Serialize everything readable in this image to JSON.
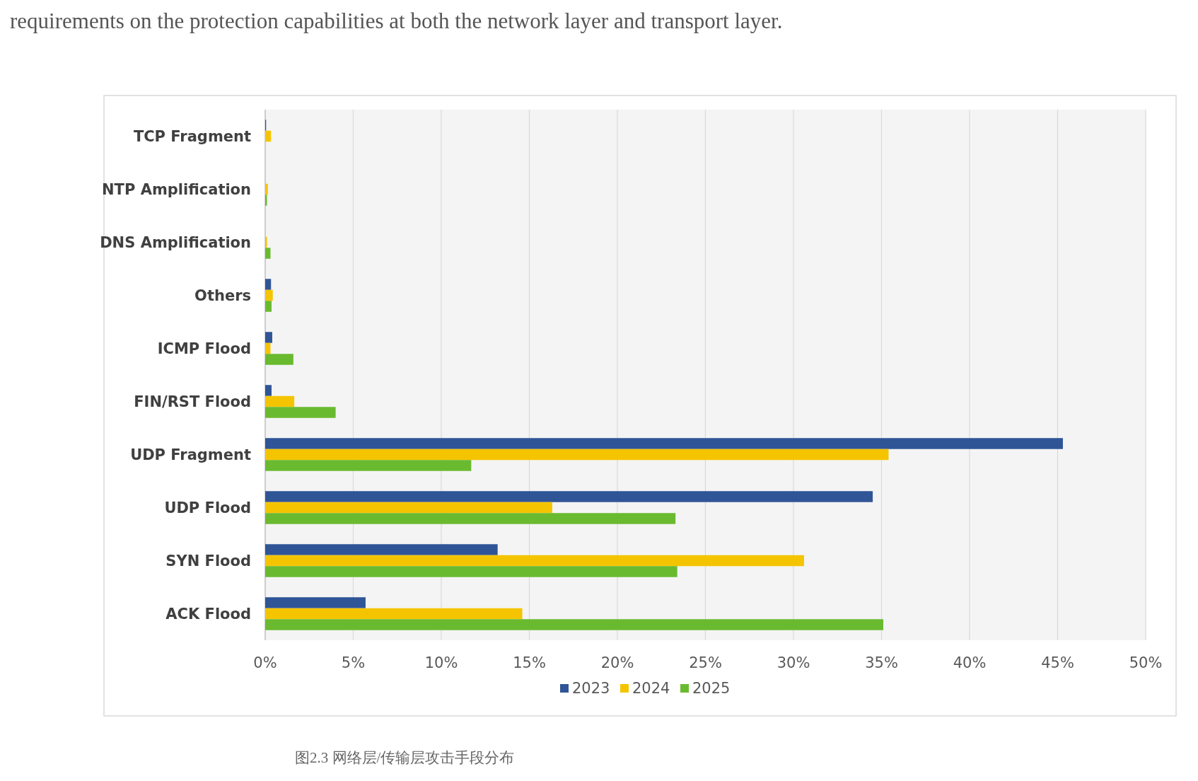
{
  "chart_data": {
    "type": "bar",
    "orientation": "horizontal",
    "categories": [
      "TCP Fragment",
      "NTP Amplification",
      "DNS Amplification",
      "Others",
      "ICMP Flood",
      "FIN/RST Flood",
      "UDP Fragment",
      "UDP Flood",
      "SYN Flood",
      "ACK Flood"
    ],
    "series": [
      {
        "name": "2023",
        "color": "#2f5597",
        "values": [
          0.05,
          0,
          0,
          0.33,
          0.4,
          0.36,
          45.3,
          34.5,
          13.2,
          5.7
        ]
      },
      {
        "name": "2024",
        "color": "#f5c400",
        "values": [
          0.33,
          0.15,
          0.1,
          0.43,
          0.3,
          1.65,
          35.4,
          16.3,
          30.6,
          14.6
        ]
      },
      {
        "name": "2025",
        "color": "#6aba2f",
        "values": [
          0,
          0.1,
          0.3,
          0.36,
          1.6,
          4.0,
          11.7,
          23.3,
          23.4,
          35.1
        ]
      }
    ],
    "xlim": [
      0,
      50
    ],
    "xticks": [
      {
        "value": 0,
        "label": "0%"
      },
      {
        "value": 5,
        "label": "5%"
      },
      {
        "value": 10,
        "label": "10%"
      },
      {
        "value": 15,
        "label": "15%"
      },
      {
        "value": 20,
        "label": "20%"
      },
      {
        "value": 25,
        "label": "25%"
      },
      {
        "value": 30,
        "label": "30%"
      },
      {
        "value": 35,
        "label": "35%"
      },
      {
        "value": 40,
        "label": "40%"
      },
      {
        "value": 45,
        "label": "45%"
      },
      {
        "value": 50,
        "label": "50%"
      }
    ],
    "grid": "x",
    "legend": "bottom",
    "annotations": [
      "requirements on the protection capabilities at both the network layer and transport layer.",
      "图2.3 网络层/传输层攻击手段分布"
    ]
  }
}
